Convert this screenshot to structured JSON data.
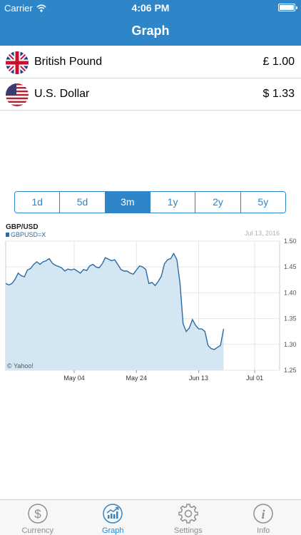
{
  "status_bar": {
    "carrier": "Carrier",
    "time": "4:06 PM"
  },
  "nav": {
    "title": "Graph"
  },
  "currencies": [
    {
      "name": "British Pound",
      "value": "£ 1.00",
      "flag_icon": "uk-flag-icon"
    },
    {
      "name": "U.S. Dollar",
      "value": "$ 1.33",
      "flag_icon": "us-flag-icon"
    }
  ],
  "ranges": [
    {
      "label": "1d",
      "active": false
    },
    {
      "label": "5d",
      "active": false
    },
    {
      "label": "3m",
      "active": true
    },
    {
      "label": "1y",
      "active": false
    },
    {
      "label": "2y",
      "active": false
    },
    {
      "label": "5y",
      "active": false
    }
  ],
  "chart_data": {
    "type": "area",
    "title": "GBP/USD",
    "legend": "GBPUSD=X",
    "date_label": "Jul 13, 2016",
    "source": "© Yahoo!",
    "ylim": [
      1.25,
      1.5
    ],
    "yticks": [
      "1.50",
      "1.45",
      "1.40",
      "1.35",
      "1.30",
      "1.25"
    ],
    "xticks": [
      {
        "label": "May 04",
        "day": 22
      },
      {
        "label": "May 24",
        "day": 42
      },
      {
        "label": "Jun 13",
        "day": 62
      },
      {
        "label": "Jul 01",
        "day": 80
      }
    ],
    "grid": true,
    "color": "#2b6aa3",
    "fill": "#d5e6f3",
    "series": [
      {
        "values": [
          [
            0,
            1.418
          ],
          [
            1,
            1.415
          ],
          [
            2,
            1.418
          ],
          [
            3,
            1.426
          ],
          [
            4,
            1.438
          ],
          [
            5,
            1.433
          ],
          [
            6,
            1.431
          ],
          [
            7,
            1.444
          ],
          [
            8,
            1.447
          ],
          [
            9,
            1.455
          ],
          [
            10,
            1.46
          ],
          [
            11,
            1.455
          ],
          [
            12,
            1.46
          ],
          [
            13,
            1.462
          ],
          [
            14,
            1.466
          ],
          [
            15,
            1.457
          ],
          [
            16,
            1.453
          ],
          [
            17,
            1.451
          ],
          [
            18,
            1.448
          ],
          [
            19,
            1.442
          ],
          [
            20,
            1.446
          ],
          [
            21,
            1.444
          ],
          [
            22,
            1.446
          ],
          [
            23,
            1.442
          ],
          [
            24,
            1.438
          ],
          [
            25,
            1.445
          ],
          [
            26,
            1.443
          ],
          [
            27,
            1.452
          ],
          [
            28,
            1.455
          ],
          [
            29,
            1.45
          ],
          [
            30,
            1.448
          ],
          [
            31,
            1.456
          ],
          [
            32,
            1.468
          ],
          [
            33,
            1.465
          ],
          [
            34,
            1.462
          ],
          [
            35,
            1.464
          ],
          [
            36,
            1.455
          ],
          [
            37,
            1.445
          ],
          [
            38,
            1.442
          ],
          [
            39,
            1.442
          ],
          [
            40,
            1.438
          ],
          [
            41,
            1.436
          ],
          [
            42,
            1.444
          ],
          [
            43,
            1.452
          ],
          [
            44,
            1.45
          ],
          [
            45,
            1.445
          ],
          [
            46,
            1.418
          ],
          [
            47,
            1.42
          ],
          [
            48,
            1.414
          ],
          [
            49,
            1.422
          ],
          [
            50,
            1.432
          ],
          [
            51,
            1.456
          ],
          [
            52,
            1.464
          ],
          [
            53,
            1.466
          ],
          [
            54,
            1.476
          ],
          [
            55,
            1.464
          ],
          [
            56,
            1.418
          ],
          [
            57,
            1.34
          ],
          [
            58,
            1.325
          ],
          [
            59,
            1.332
          ],
          [
            60,
            1.348
          ],
          [
            61,
            1.337
          ],
          [
            62,
            1.33
          ],
          [
            63,
            1.33
          ],
          [
            64,
            1.325
          ],
          [
            65,
            1.298
          ],
          [
            66,
            1.292
          ],
          [
            67,
            1.29
          ],
          [
            68,
            1.294
          ],
          [
            69,
            1.298
          ],
          [
            70,
            1.33
          ]
        ]
      }
    ]
  },
  "tabbar": {
    "tabs": [
      {
        "label": "Currency",
        "icon": "dollar-circle-icon",
        "active": false
      },
      {
        "label": "Graph",
        "icon": "chart-circle-icon",
        "active": true
      },
      {
        "label": "Settings",
        "icon": "gear-icon",
        "active": false
      },
      {
        "label": "Info",
        "icon": "info-circle-icon",
        "active": false
      }
    ]
  }
}
